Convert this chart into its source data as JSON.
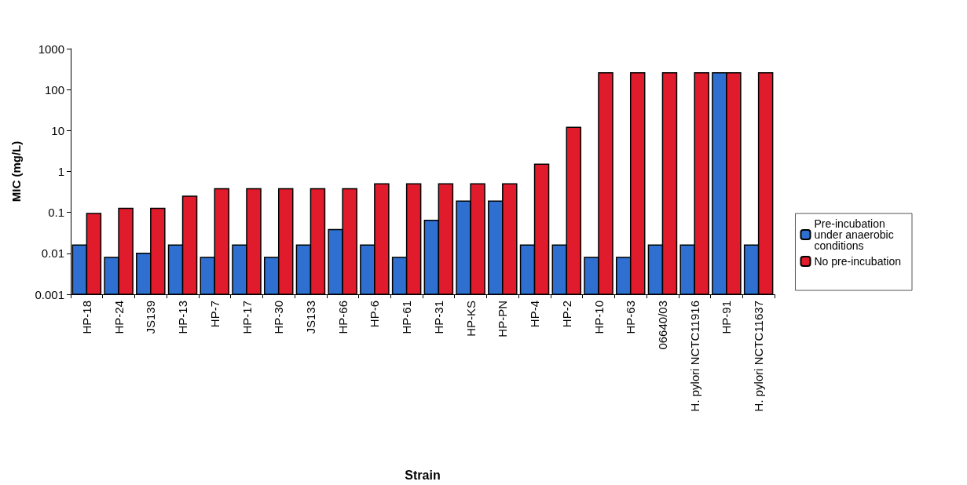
{
  "chart_data": {
    "type": "bar",
    "xlabel": "Strain",
    "ylabel": "MIC (mg/L)",
    "categories": [
      "HP-18",
      "HP-24",
      "JS139",
      "HP-13",
      "HP-7",
      "HP-17",
      "HP-30",
      "JS133",
      "HP-66",
      "HP-6",
      "HP-61",
      "HP-31",
      "HP-KS",
      "HP-PN",
      "HP-4",
      "HP-2",
      "HP-10",
      "HP-63",
      "06640/03",
      "H. pylori NCTC11916",
      "HP-91",
      "H. pylori NCTC11637"
    ],
    "series": [
      {
        "name": "Pre-incubation under anaerobic conditions",
        "color": "#2e6fd0",
        "values": [
          0.016,
          0.008,
          0.01,
          0.016,
          0.008,
          0.016,
          0.008,
          0.016,
          0.038,
          0.016,
          0.008,
          0.064,
          0.19,
          0.19,
          0.016,
          0.016,
          0.008,
          0.008,
          0.016,
          0.016,
          256,
          0.016
        ]
      },
      {
        "name": "No pre-incubation",
        "color": "#e01b2c",
        "values": [
          0.094,
          0.125,
          0.125,
          0.25,
          0.38,
          0.38,
          0.38,
          0.38,
          0.38,
          0.5,
          0.5,
          0.5,
          0.5,
          0.5,
          1.5,
          12,
          256,
          256,
          256,
          256,
          256,
          256
        ]
      }
    ],
    "log": "y",
    "ylim": [
      0.001,
      1000
    ],
    "yticks": [
      0.001,
      0.01,
      0.1,
      1,
      10,
      100,
      1000
    ],
    "grid": false,
    "legend": "right"
  }
}
